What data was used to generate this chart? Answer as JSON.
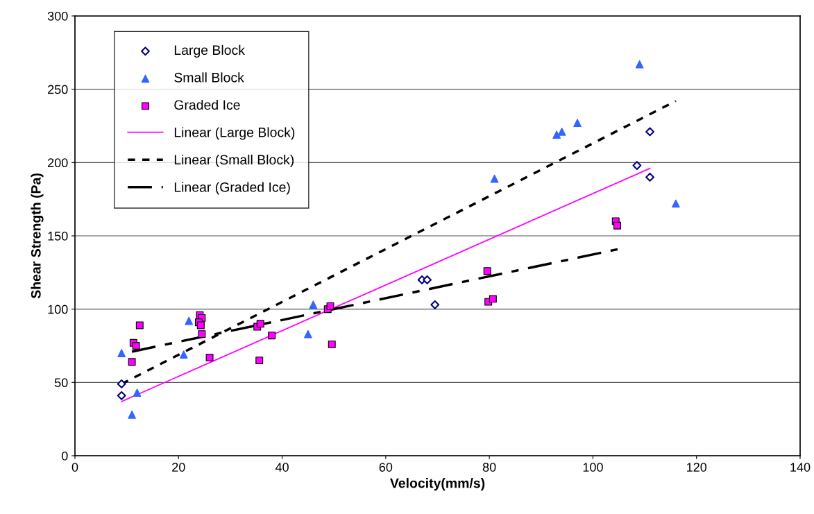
{
  "chart_data": {
    "type": "scatter",
    "xlabel": "Velocity(mm/s)",
    "ylabel": "Shear Strength (Pa)",
    "xlim": [
      0,
      140
    ],
    "ylim": [
      0,
      300
    ],
    "xticks": [
      0,
      20,
      40,
      60,
      80,
      100,
      120,
      140
    ],
    "yticks": [
      0,
      50,
      100,
      150,
      200,
      250,
      300
    ],
    "grid": "y",
    "legend": "top left",
    "series": [
      {
        "name": "Large Block",
        "color": "#000080",
        "marker": "diamond",
        "x": [
          9,
          9,
          67,
          68,
          69.5,
          108.5,
          111,
          111
        ],
        "values": [
          49,
          41,
          120,
          120,
          103,
          198,
          221,
          190
        ]
      },
      {
        "name": "Small Block",
        "color": "#3366ff",
        "marker": "triangle",
        "x": [
          9,
          11,
          12,
          21,
          22,
          45,
          46,
          81,
          93,
          94,
          97,
          109,
          116
        ],
        "values": [
          70,
          28,
          43,
          69,
          92,
          83,
          103,
          189,
          219,
          221,
          227,
          267,
          172
        ]
      },
      {
        "name": "Graded Ice",
        "color": "#ff00ff",
        "marker": "square",
        "x": [
          11,
          11.3,
          11.8,
          12.5,
          24.1,
          24.5,
          23.9,
          24.3,
          24.5,
          26,
          35.2,
          35.8,
          35.6,
          38,
          48.8,
          49.3,
          49.6,
          79.6,
          79.8,
          80.7,
          104.4,
          104.7
        ],
        "values": [
          64,
          77,
          75,
          89,
          96,
          94,
          91,
          89,
          83,
          67,
          88,
          90,
          65,
          82,
          100,
          102,
          76,
          126,
          105,
          107,
          160,
          157
        ]
      },
      {
        "name": "Linear (Large Block)",
        "type": "line",
        "color": "#ff00ff",
        "line_style": "solid",
        "marker": "none",
        "x": [
          9,
          111
        ],
        "values": [
          37,
          196
        ]
      },
      {
        "name": "Linear (Small Block)",
        "type": "line",
        "color": "#000000",
        "line_style": "dotted",
        "marker": "none",
        "x": [
          9,
          116
        ],
        "values": [
          49,
          242
        ]
      },
      {
        "name": "Linear (Graded Ice)",
        "type": "line",
        "color": "#000000",
        "line_style": "dashed",
        "marker": "none",
        "x": [
          11,
          105
        ],
        "values": [
          71,
          141
        ]
      }
    ]
  }
}
